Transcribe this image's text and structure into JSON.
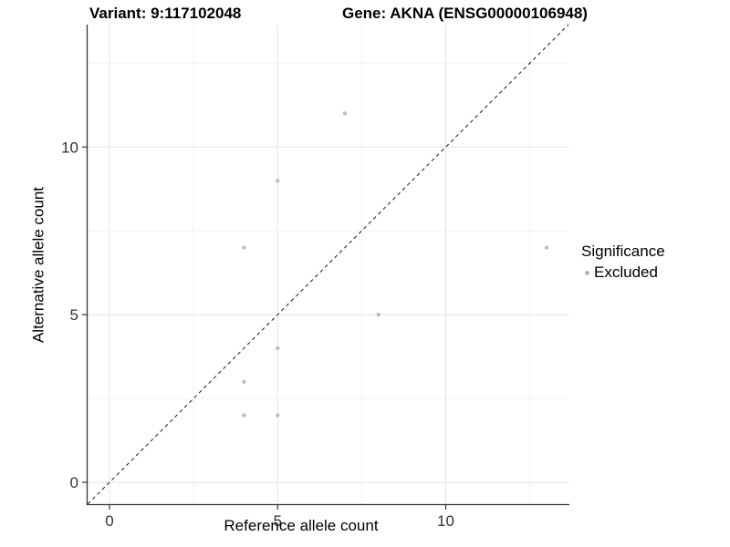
{
  "header": {
    "variant_title": "Variant: 9:117102048",
    "gene_title": "Gene: AKNA (ENSG00000106948)"
  },
  "chart_data": {
    "type": "scatter",
    "title_left": "Variant: 9:117102048",
    "title_right": "Gene: AKNA (ENSG00000106948)",
    "xlabel": "Reference allele count",
    "ylabel": "Alternative allele count",
    "xlim": [
      -0.65,
      13.65
    ],
    "ylim": [
      -0.65,
      13.65
    ],
    "x_ticks": [
      0,
      5,
      10
    ],
    "y_ticks": [
      0,
      5,
      10
    ],
    "x_minor_ticks": [
      2.5,
      7.5,
      12.5
    ],
    "y_minor_ticks": [
      2.5,
      7.5,
      12.5
    ],
    "grid": true,
    "identity_line": {
      "type": "dashed",
      "slope": 1,
      "intercept": 0,
      "color": "#1a1a1a"
    },
    "series": [
      {
        "name": "Excluded",
        "color": "#bdbdbd",
        "points": [
          {
            "x": 4,
            "y": 2
          },
          {
            "x": 5,
            "y": 2
          },
          {
            "x": 4,
            "y": 3
          },
          {
            "x": 5,
            "y": 4
          },
          {
            "x": 8,
            "y": 5
          },
          {
            "x": 4,
            "y": 7
          },
          {
            "x": 13,
            "y": 7
          },
          {
            "x": 5,
            "y": 9
          },
          {
            "x": 7,
            "y": 11
          }
        ]
      }
    ],
    "legend": {
      "position": "right",
      "title": "Significance",
      "entries": [
        {
          "label": "Excluded",
          "marker_color": "#b5b5b5"
        }
      ]
    },
    "colors": {
      "point": "#bdbdbd",
      "grid_major": "#e3e3e3",
      "grid_minor": "#f0f0f0",
      "axis_line": "#333333",
      "tick_label": "#333333",
      "background": "#ffffff"
    }
  }
}
